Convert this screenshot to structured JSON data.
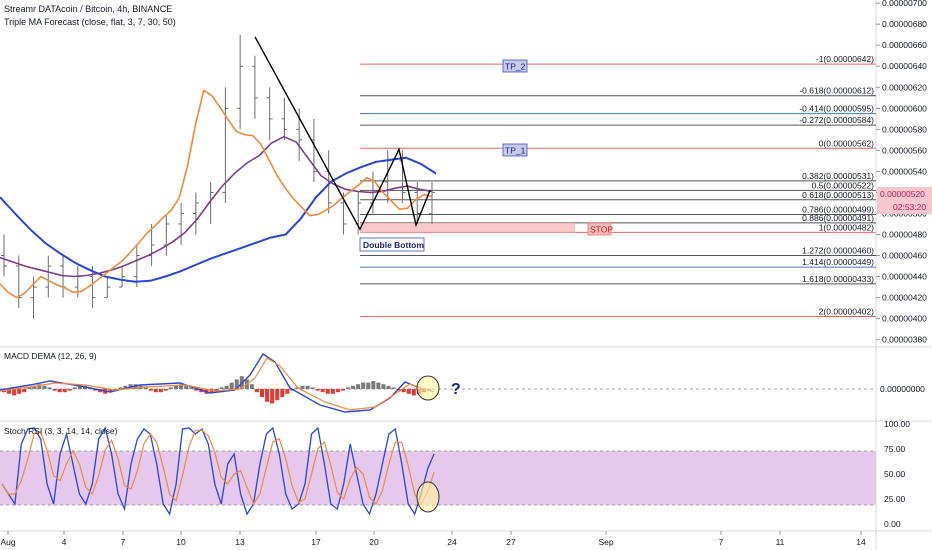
{
  "header": {
    "title": "Streamr DATAcoin / Bitcoin, 4h, BINANCE",
    "indicator": "Triple MA Forecast (close, flat, 3, 7, 30, 50)"
  },
  "price_axis": {
    "ticks": [
      "0.00000700",
      "0.00000680",
      "0.00000660",
      "0.00000640",
      "0.00000620",
      "0.00000600",
      "0.00000580",
      "0.00000560",
      "0.00000540",
      "0.00000520",
      "0.00000500",
      "0.00000480",
      "0.00000460",
      "0.00000440",
      "0.00000420",
      "0.00000400",
      "0.00000380"
    ],
    "current_price": "0.00000520",
    "countdown": "02:53:20"
  },
  "time_axis": {
    "ticks": [
      "Aug",
      "4",
      "7",
      "10",
      "13",
      "17",
      "20",
      "24",
      "27",
      "Sep",
      "7",
      "11",
      "14"
    ]
  },
  "fib_levels": [
    {
      "label": "-1(0.00000642)",
      "value": 6.42e-06,
      "color": "#f06262"
    },
    {
      "label": "-0.618(0.00000612)",
      "value": 6.12e-06,
      "color": "#555555"
    },
    {
      "label": "-0.414(0.00000595)",
      "value": 5.95e-06,
      "color": "#4a74c9"
    },
    {
      "label": "-0.272(0.00000584)",
      "value": 5.84e-06,
      "color": "#555555"
    },
    {
      "label": "0(0.00000562)",
      "value": 5.62e-06,
      "color": "#f06262"
    },
    {
      "label": "0.382(0.00000531)",
      "value": 5.31e-06,
      "color": "#555555"
    },
    {
      "label": "0.5(0.00000522)",
      "value": 5.22e-06,
      "color": "#555555"
    },
    {
      "label": "0.618(0.00000513)",
      "value": 5.13e-06,
      "color": "#555555"
    },
    {
      "label": "0.786(0.00000499)",
      "value": 4.99e-06,
      "color": "#555555"
    },
    {
      "label": "0.886(0.00000491)",
      "value": 4.91e-06,
      "color": "#555555"
    },
    {
      "label": "1(0.00000482)",
      "value": 4.82e-06,
      "color": "#f06262"
    },
    {
      "label": "1.272(0.00000460)",
      "value": 4.6e-06,
      "color": "#555555"
    },
    {
      "label": "1.414(0.00000449)",
      "value": 4.49e-06,
      "color": "#4a74c9"
    },
    {
      "label": "1.618(0.00000433)",
      "value": 4.33e-06,
      "color": "#555555"
    },
    {
      "label": "2(0.00000402)",
      "value": 4.02e-06,
      "color": "#f06262"
    }
  ],
  "annotations": {
    "tp2": "TP_2",
    "tp1": "TP_1",
    "stop": "STOP",
    "double_bottom": "Double Bottom",
    "question": "?"
  },
  "macd": {
    "title": "MACD DEMA (12, 26, 9)",
    "tick": "0.00000000"
  },
  "stoch": {
    "title": "Stoch RSI (3, 3, 14, 14, close)",
    "ticks": [
      "100.00",
      "75.00",
      "50.00",
      "25.00",
      "0.00"
    ],
    "band_color": "#e1bee7"
  },
  "colors": {
    "blue_ma": "#2946d8",
    "purple_ma": "#7b3d8c",
    "orange_ma": "#f08a3c",
    "fib_red": "#f06262",
    "macd_line": "#2946d8",
    "signal_line": "#f08a3c",
    "hist_pos": "#7a7a7a",
    "hist_neg": "#e53935"
  },
  "chart_data": {
    "type": "line",
    "title": "Streamr DATAcoin / Bitcoin, 4h, BINANCE",
    "xlabel": "",
    "ylabel": "",
    "ylim": [
      3.73e-06,
      7.03e-06
    ],
    "grid": false,
    "x_ticks": [
      "Aug",
      "4",
      "7",
      "10",
      "13",
      "17",
      "20",
      "24",
      "27",
      "Sep",
      "7",
      "11",
      "14"
    ],
    "series": [
      {
        "name": "Triple MA Forecast 50",
        "values": [
          5.155e-06,
          5e-06,
          4.85e-06,
          4.72e-06,
          4.62e-06,
          4.53e-06,
          4.46e-06,
          4.4e-06,
          4.37e-06,
          4.35e-06,
          4.36e-06,
          4.4e-06,
          4.45e-06,
          4.51e-06,
          4.57e-06,
          4.62e-06,
          4.67e-06,
          4.72e-06,
          4.77e-06,
          4.8e-06,
          4.95e-06,
          5.15e-06,
          5.3e-06,
          5.38e-06,
          5.44e-06,
          5.49e-06,
          5.51e-06,
          5.53e-06,
          5.47e-06,
          5.38e-06
        ]
      },
      {
        "name": "Triple MA Forecast 30",
        "values": [
          4.58e-06,
          4.54e-06,
          4.5e-06,
          4.47e-06,
          4.44e-06,
          4.41e-06,
          4.4e-06,
          4.41e-06,
          4.43e-06,
          4.46e-06,
          4.5e-06,
          4.55e-06,
          4.6e-06,
          4.66e-06,
          4.73e-06,
          4.82e-06,
          4.95e-06,
          5.11e-06,
          5.26e-06,
          5.38e-06,
          5.48e-06,
          5.55e-06,
          5.67e-06,
          5.73e-06,
          5.68e-06,
          5.52e-06,
          5.36e-06,
          5.28e-06,
          5.23e-06,
          5.21e-06,
          5.2e-06,
          5.21e-06,
          5.24e-06,
          5.26e-06,
          5.23e-06,
          5.21e-06
        ]
      },
      {
        "name": "Triple MA Forecast 7",
        "values": [
          4.33e-06,
          4.25e-06,
          4.2e-06,
          4.24e-06,
          4.32e-06,
          4.4e-06,
          4.36e-06,
          4.32e-06,
          4.29e-06,
          4.25e-06,
          4.26e-06,
          4.31e-06,
          4.37e-06,
          4.43e-06,
          4.49e-06,
          4.55e-06,
          4.63e-06,
          4.72e-06,
          4.81e-06,
          4.88e-06,
          4.96e-06,
          5.03e-06,
          5.15e-06,
          5.45e-06,
          5.85e-06,
          6.17e-06,
          6.12e-06,
          6.01e-06,
          5.89e-06,
          5.78e-06,
          5.75e-06,
          5.74e-06,
          5.66e-06,
          5.51e-06,
          5.36e-06,
          5.24e-06,
          5.14e-06,
          5.06e-06,
          4.98e-06,
          4.99e-06,
          5.03e-06,
          5.08e-06,
          5.15e-06,
          5.21e-06,
          5.27e-06,
          5.34e-06,
          5.3e-06,
          5.2e-06,
          5.12e-06,
          5.04e-06,
          5.05e-06,
          5.13e-06,
          5.18e-06,
          5.16e-06
        ]
      }
    ],
    "ohlc_sampled": [
      {
        "o": 4.6e-06,
        "h": 4.8e-06,
        "l": 4.4e-06,
        "c": 4.5e-06
      },
      {
        "o": 4.5e-06,
        "h": 4.6e-06,
        "l": 4.1e-06,
        "c": 4.2e-06
      },
      {
        "o": 4.2e-06,
        "h": 4.4e-06,
        "l": 4e-06,
        "c": 4.3e-06
      },
      {
        "o": 4.3e-06,
        "h": 4.6e-06,
        "l": 4.2e-06,
        "c": 4.5e-06
      },
      {
        "o": 4.5e-06,
        "h": 4.6e-06,
        "l": 4.2e-06,
        "c": 4.3e-06
      },
      {
        "o": 4.3e-06,
        "h": 4.5e-06,
        "l": 4.2e-06,
        "c": 4.4e-06
      },
      {
        "o": 4.4e-06,
        "h": 4.5e-06,
        "l": 4.1e-06,
        "c": 4.2e-06
      },
      {
        "o": 4.2e-06,
        "h": 4.4e-06,
        "l": 4.2e-06,
        "c": 4.3e-06
      },
      {
        "o": 4.3e-06,
        "h": 4.5e-06,
        "l": 4.3e-06,
        "c": 4.4e-06
      },
      {
        "o": 4.4e-06,
        "h": 4.7e-06,
        "l": 4.3e-06,
        "c": 4.6e-06
      },
      {
        "o": 4.6e-06,
        "h": 4.9e-06,
        "l": 4.5e-06,
        "c": 4.7e-06
      },
      {
        "o": 4.7e-06,
        "h": 5e-06,
        "l": 4.6e-06,
        "c": 4.9e-06
      },
      {
        "o": 4.9e-06,
        "h": 5.1e-06,
        "l": 4.7e-06,
        "c": 5e-06
      },
      {
        "o": 5e-06,
        "h": 5.2e-06,
        "l": 4.8e-06,
        "c": 5.1e-06
      },
      {
        "o": 5.1e-06,
        "h": 5.3e-06,
        "l": 4.9e-06,
        "c": 5.2e-06
      },
      {
        "o": 5.2e-06,
        "h": 6.2e-06,
        "l": 5.1e-06,
        "c": 6e-06
      },
      {
        "o": 6e-06,
        "h": 6.7e-06,
        "l": 5.8e-06,
        "c": 6.4e-06
      },
      {
        "o": 6.4e-06,
        "h": 6.5e-06,
        "l": 5.9e-06,
        "c": 6.1e-06
      },
      {
        "o": 6.1e-06,
        "h": 6.2e-06,
        "l": 5.7e-06,
        "c": 5.9e-06
      },
      {
        "o": 5.9e-06,
        "h": 6.1e-06,
        "l": 5.7e-06,
        "c": 5.8e-06
      },
      {
        "o": 5.8e-06,
        "h": 6e-06,
        "l": 5.5e-06,
        "c": 5.7e-06
      },
      {
        "o": 5.7e-06,
        "h": 5.9e-06,
        "l": 5.3e-06,
        "c": 5.4e-06
      },
      {
        "o": 5.4e-06,
        "h": 5.6e-06,
        "l": 5e-06,
        "c": 5.1e-06
      },
      {
        "o": 5.1e-06,
        "h": 5.2e-06,
        "l": 4.8e-06,
        "c": 4.9e-06
      },
      {
        "o": 4.9e-06,
        "h": 5.2e-06,
        "l": 4.8e-06,
        "c": 5.1e-06
      },
      {
        "o": 5.1e-06,
        "h": 5.4e-06,
        "l": 5e-06,
        "c": 5.3e-06
      },
      {
        "o": 5.3e-06,
        "h": 5.6e-06,
        "l": 5.1e-06,
        "c": 5.5e-06
      },
      {
        "o": 5.5e-06,
        "h": 5.6e-06,
        "l": 5.1e-06,
        "c": 5.2e-06
      },
      {
        "o": 5.2e-06,
        "h": 5.3e-06,
        "l": 4.9e-06,
        "c": 5e-06
      },
      {
        "o": 5e-06,
        "h": 5.3e-06,
        "l": 4.9e-06,
        "c": 5.2e-06
      }
    ]
  }
}
